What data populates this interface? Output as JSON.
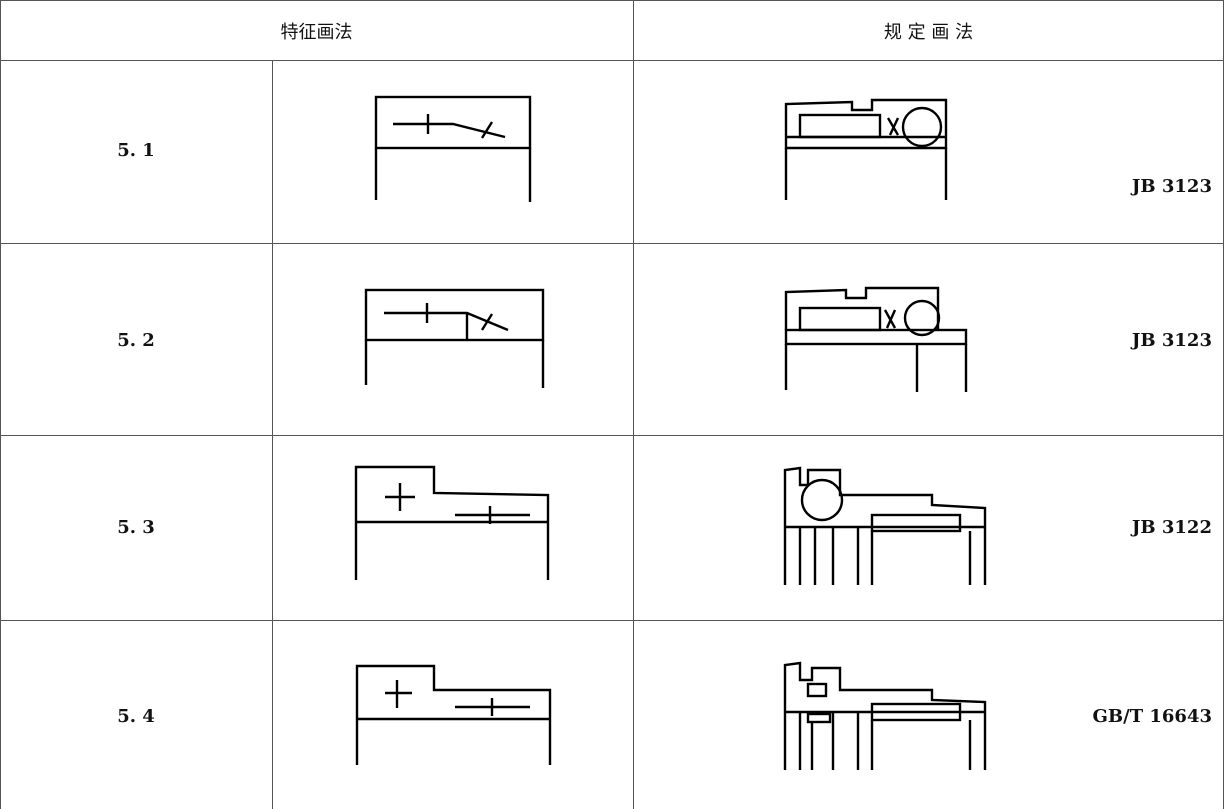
{
  "header": {
    "feature": "特征画法",
    "standard": "规 定 画 法"
  },
  "rows": [
    {
      "number": "5. 1",
      "code": "JB 3123"
    },
    {
      "number": "5. 2",
      "code": "JB 3123"
    },
    {
      "number": "5. 3",
      "code": "JB 3122"
    },
    {
      "number": "5. 4",
      "code": "GB/T 16643"
    }
  ]
}
